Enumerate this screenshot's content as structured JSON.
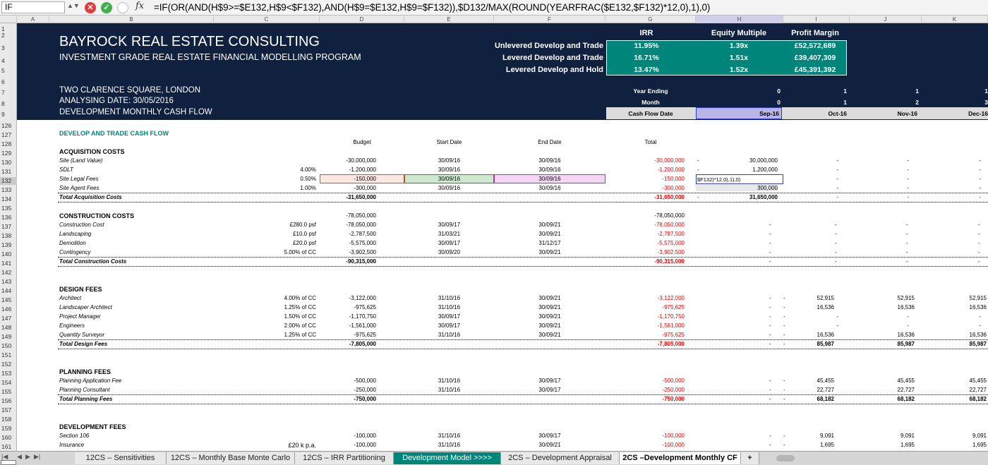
{
  "formula_bar": {
    "name_box": "IF",
    "fx": "fx",
    "cancel": "✕",
    "confirm": "✓",
    "formula": "=IF(OR(AND(H$9>=$E132,H$9<$F132),AND(H$9=$E132,H$9=$F132)),$D132/MAX(ROUND(YEARFRAC($E132,$F132)*12,0),1),0)"
  },
  "columns": [
    "A",
    "B",
    "C",
    "D",
    "E",
    "F",
    "G",
    "H",
    "I",
    "J",
    "K"
  ],
  "rows": [
    "1",
    "2",
    "3",
    "4",
    "5",
    "6",
    "7",
    "8",
    "9",
    "126",
    "127",
    "128",
    "129",
    "130",
    "131",
    "132",
    "133",
    "134",
    "135",
    "136",
    "137",
    "138",
    "139",
    "140",
    "141",
    "142",
    "143",
    "144",
    "145",
    "146",
    "147",
    "148",
    "149",
    "150",
    "151",
    "152",
    "153",
    "154",
    "155",
    "156",
    "157",
    "158",
    "159",
    "160",
    "161"
  ],
  "header": {
    "title": "BAYROCK REAL ESTATE CONSULTING",
    "subtitle": "INVESTMENT GRADE REAL ESTATE FINANCIAL MODELLING PROGRAM",
    "address": "TWO CLARENCE SQUARE, LONDON",
    "analysing_date": "ANALYSING DATE: 30/05/2016",
    "sheet_desc": "DEVELOPMENT MONTHLY CASH FLOW"
  },
  "scorecard": {
    "headers": [
      "IRR",
      "Equity Multiple",
      "Profit Margin"
    ],
    "rows": [
      {
        "label": "Unlevered Develop and Trade",
        "irr": "11.95%",
        "multiple": "1.39x",
        "margin": "£52,572,689"
      },
      {
        "label": "Levered Develop and Trade",
        "irr": "16.71%",
        "multiple": "1.51x",
        "margin": "£39,407,309"
      },
      {
        "label": "Levered Develop and Hold",
        "irr": "13.47%",
        "multiple": "1.52x",
        "margin": "£45,391,392"
      }
    ]
  },
  "timeline": {
    "year_label": "Year Ending",
    "month_label": "Month",
    "date_label": "Cash Flow Date",
    "years": [
      "0",
      "1",
      "1",
      "1"
    ],
    "months": [
      "0",
      "1",
      "2",
      "3"
    ],
    "dates": [
      "Sep-16",
      "Oct-16",
      "Nov-16",
      "Dec-16"
    ]
  },
  "section_title": "DEVELOP AND TRADE CASH FLOW",
  "table_headers": {
    "budget": "Budget",
    "start": "Start Date",
    "end": "End Date",
    "total": "Total"
  },
  "acquisition": {
    "title": "ACQUISITION COSTS",
    "rows": [
      {
        "name": "Site (Land Value)",
        "pct": "",
        "budget": "-30,000,000",
        "start": "30/09/16",
        "end": "30/09/16",
        "total": "-30,000,000",
        "g": "-",
        "h": "30,000,000",
        "i": "-",
        "j": "-",
        "k": "-"
      },
      {
        "name": "SDLT",
        "pct": "4.00%",
        "budget": "-1,200,000",
        "start": "30/09/16",
        "end": "30/09/16",
        "total": "-1,200,000",
        "g": "-",
        "h": "1,200,000",
        "i": "-",
        "j": "-",
        "k": "-"
      },
      {
        "name": "Site Legal Fees",
        "pct": "0.50%",
        "budget": "-150,000",
        "start": "30/09/16",
        "end": "30/09/16",
        "total": "-150,000",
        "g": "$F132)*12,0),1),0)",
        "h": "",
        "i": "-",
        "j": "-",
        "k": "-"
      },
      {
        "name": "Site Agent Fees",
        "pct": "1.00%",
        "budget": "-300,000",
        "start": "30/09/16",
        "end": "30/09/16",
        "total": "-300,000",
        "g": "-",
        "h": "300,000",
        "i": "-",
        "j": "-",
        "k": "-"
      }
    ],
    "total": {
      "name": "Total Acquisition Costs",
      "budget": "-31,650,000",
      "total": "-31,650,000",
      "g": "-",
      "h": "31,650,000",
      "i": "-",
      "j": "-",
      "k": "-"
    }
  },
  "construction": {
    "title": "CONSTRUCTION COSTS",
    "header_budget": "-78,050,000",
    "header_total": "-78,050,000",
    "rows": [
      {
        "name": "Construction Cost",
        "pct": "£280.0 psf",
        "budget": "-78,050,000",
        "start": "30/09/17",
        "end": "30/09/21",
        "total": "-78,050,000"
      },
      {
        "name": "Landscaping",
        "pct": "£10.0 psf",
        "budget": "-2,787,500",
        "start": "31/03/21",
        "end": "30/09/21",
        "total": "-2,787,500"
      },
      {
        "name": "Demolition",
        "pct": "£20.0 psf",
        "budget": "-5,575,000",
        "start": "30/09/17",
        "end": "31/12/17",
        "total": "-5,575,000"
      },
      {
        "name": "Contingency",
        "pct": "5.00% of CC",
        "budget": "-3,902,500",
        "start": "30/09/20",
        "end": "30/09/21",
        "total": "-3,902,500"
      }
    ],
    "total": {
      "name": "Total Construction Costs",
      "budget": "-90,315,000",
      "total": "-90,315,000"
    }
  },
  "design": {
    "title": "DESIGN FEES",
    "rows": [
      {
        "name": "Architect",
        "pct": "4.00% of CC",
        "budget": "-3,122,000",
        "start": "31/10/16",
        "end": "30/09/21",
        "total": "-3,122,000",
        "i": "52,915",
        "j": "52,915",
        "k": "52,915"
      },
      {
        "name": "Landscaper Architect",
        "pct": "1.25% of CC",
        "budget": "-975,625",
        "start": "31/10/16",
        "end": "30/09/21",
        "total": "-975,625",
        "i": "16,536",
        "j": "16,536",
        "k": "16,536"
      },
      {
        "name": "Project Manager",
        "pct": "1.50% of CC",
        "budget": "-1,170,750",
        "start": "30/09/17",
        "end": "30/09/21",
        "total": "-1,170,750",
        "i": "-",
        "j": "-",
        "k": "-"
      },
      {
        "name": "Engineers",
        "pct": "2.00% of CC",
        "budget": "-1,561,000",
        "start": "30/09/17",
        "end": "30/09/21",
        "total": "-1,561,000",
        "i": "-",
        "j": "-",
        "k": "-"
      },
      {
        "name": "Quantity Surveyor",
        "pct": "1.25% of CC",
        "budget": "-975,625",
        "start": "31/10/16",
        "end": "30/09/21",
        "total": "-975,625",
        "i": "16,536",
        "j": "16,536",
        "k": "16,536"
      }
    ],
    "total": {
      "name": "Total Design Fees",
      "budget": "-7,805,000",
      "total": "-7,805,000",
      "i": "85,987",
      "j": "85,987",
      "k": "85,987"
    }
  },
  "planning": {
    "title": "PLANNING FEES",
    "rows": [
      {
        "name": "Planning Application Fee",
        "budget": "-500,000",
        "start": "31/10/16",
        "end": "30/09/17",
        "total": "-500,000",
        "i": "45,455",
        "j": "45,455",
        "k": "45,455"
      },
      {
        "name": "Planning Consultant",
        "budget": "-250,000",
        "start": "31/10/16",
        "end": "30/09/17",
        "total": "-250,000",
        "i": "22,727",
        "j": "22,727",
        "k": "22,727"
      }
    ],
    "total": {
      "name": "Total Planning Fees",
      "budget": "-750,000",
      "total": "-750,000",
      "i": "68,182",
      "j": "68,182",
      "k": "68,182"
    }
  },
  "development": {
    "title": "DEVELOPMENT FEES",
    "rows": [
      {
        "name": "Section 106",
        "pct": "",
        "budget": "-100,000",
        "start": "31/10/16",
        "end": "30/09/17",
        "total": "-100,000",
        "i": "9,091",
        "j": "9,091",
        "k": "9,091"
      },
      {
        "name": "Insurance",
        "pct": "£20 k p.a.",
        "budget": "-100,000",
        "start": "31/10/16",
        "end": "30/09/21",
        "total": "-100,000",
        "i": "1,695",
        "j": "1,695",
        "k": "1,695"
      }
    ]
  },
  "dash": "-",
  "tabs": [
    "12CS – Sensitivities",
    "12CS – Monthly Base Monte Carlo",
    "12CS – IRR Partitioning",
    "Development Model >>>>",
    "2CS – Development Appraisal",
    "2CS –Development Monthly CF"
  ],
  "tab_add": "+",
  "colors": {
    "navy": "#0f213f",
    "teal": "#00857a",
    "negative": "#e00000"
  }
}
